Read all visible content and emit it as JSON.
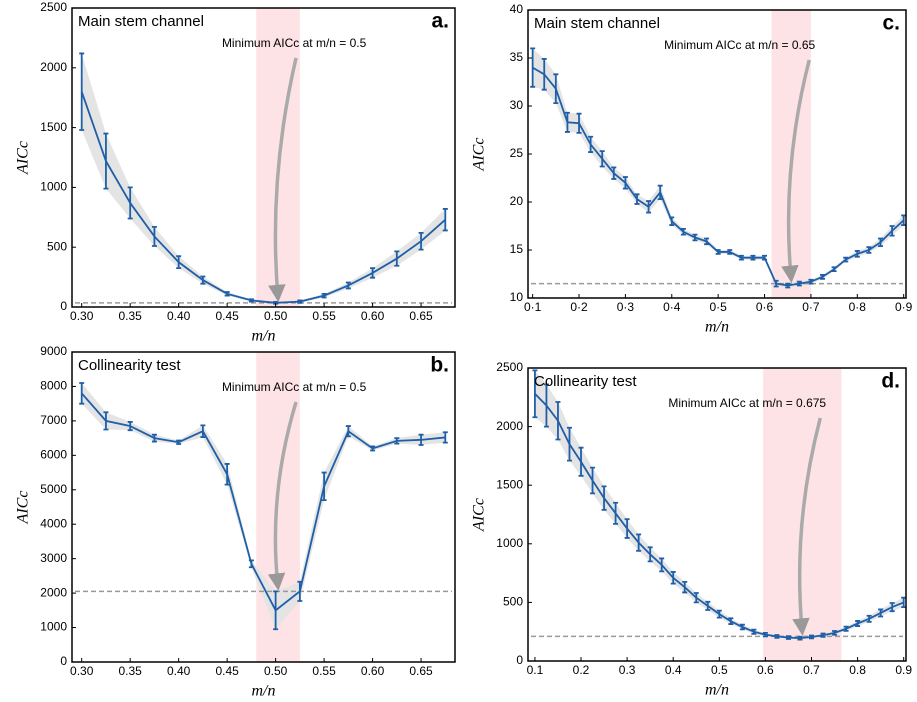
{
  "chart_data": [
    {
      "type": "line",
      "title": "Main stem channel",
      "label": "a.",
      "annotation": "Minimum AICc at m/n = 0.5",
      "xlabel": "m/n",
      "ylabel": "AICc",
      "color": "#1f5fa8",
      "x": [
        0.3,
        0.325,
        0.35,
        0.375,
        0.4,
        0.425,
        0.45,
        0.475,
        0.5,
        0.525,
        0.55,
        0.575,
        0.6,
        0.625,
        0.65,
        0.675
      ],
      "values": [
        1800,
        1220,
        870,
        590,
        375,
        225,
        110,
        55,
        35,
        45,
        95,
        180,
        285,
        405,
        550,
        730
      ],
      "errors": [
        320,
        230,
        130,
        80,
        50,
        30,
        15,
        10,
        8,
        10,
        15,
        25,
        40,
        60,
        70,
        90
      ],
      "hline": 35,
      "highlight": [
        0.48,
        0.525
      ],
      "xlim": [
        0.29,
        0.685
      ],
      "xticks": [
        {
          "value": 0.3,
          "label": "0.30"
        },
        0.35,
        {
          "value": 0.4,
          "label": "0.40"
        },
        0.45,
        {
          "value": 0.5,
          "label": "0.50"
        },
        0.55,
        {
          "value": 0.6,
          "label": "0.60"
        },
        0.65
      ],
      "ylim": [
        0,
        2500
      ],
      "yticks": [
        0,
        500,
        1000,
        1500,
        2000,
        2500
      ]
    },
    {
      "type": "line",
      "title": "Collinearity test",
      "label": "b.",
      "annotation": "Minimum AICc at m/n = 0.5",
      "xlabel": "m/n",
      "ylabel": "AICc",
      "color": "#1f5fa8",
      "x": [
        0.3,
        0.325,
        0.35,
        0.375,
        0.4,
        0.425,
        0.45,
        0.475,
        0.5,
        0.525,
        0.55,
        0.575,
        0.6,
        0.625,
        0.65,
        0.675
      ],
      "values": [
        7800,
        7000,
        6850,
        6500,
        6380,
        6700,
        5450,
        2850,
        1500,
        2050,
        5100,
        6700,
        6200,
        6420,
        6450,
        6520
      ],
      "errors": [
        300,
        250,
        120,
        100,
        50,
        170,
        300,
        100,
        550,
        280,
        400,
        150,
        60,
        80,
        150,
        150
      ],
      "hline": 2050,
      "highlight": [
        0.48,
        0.525
      ],
      "xlim": [
        0.29,
        0.685
      ],
      "xticks": [
        {
          "value": 0.3,
          "label": "0.30"
        },
        0.35,
        {
          "value": 0.4,
          "label": "0.40"
        },
        0.45,
        {
          "value": 0.5,
          "label": "0.50"
        },
        0.55,
        {
          "value": 0.6,
          "label": "0.60"
        },
        0.65
      ],
      "ylim": [
        0,
        9000
      ],
      "yticks": [
        0,
        1000,
        2000,
        3000,
        4000,
        5000,
        6000,
        7000,
        8000,
        9000
      ]
    },
    {
      "type": "line",
      "title": "Main stem channel",
      "label": "c.",
      "annotation": "Minimum AICc at m/n = 0.65",
      "xlabel": "m/n",
      "ylabel": "AICc",
      "color": "#1f5fa8",
      "x": [
        0.1,
        0.125,
        0.15,
        0.175,
        0.2,
        0.225,
        0.25,
        0.275,
        0.3,
        0.325,
        0.35,
        0.375,
        0.4,
        0.425,
        0.45,
        0.475,
        0.5,
        0.525,
        0.55,
        0.575,
        0.6,
        0.625,
        0.65,
        0.675,
        0.7,
        0.725,
        0.75,
        0.775,
        0.8,
        0.825,
        0.85,
        0.875,
        0.9
      ],
      "values": [
        34,
        33.3,
        31.8,
        28.3,
        28.2,
        26,
        24.5,
        23,
        22,
        20.3,
        19.5,
        21,
        18,
        16.9,
        16.3,
        15.9,
        14.8,
        14.8,
        14.2,
        14.2,
        14.2,
        11.5,
        11.3,
        11.5,
        11.7,
        12.2,
        13,
        14,
        14.6,
        15,
        15.8,
        17,
        18.1
      ],
      "errors": [
        2,
        1.6,
        1.5,
        1,
        1,
        0.8,
        0.8,
        0.6,
        0.6,
        0.5,
        0.6,
        0.7,
        0.4,
        0.3,
        0.3,
        0.3,
        0.2,
        0.2,
        0.2,
        0.2,
        0.2,
        0.3,
        0.2,
        0.2,
        0.2,
        0.2,
        0.2,
        0.2,
        0.3,
        0.3,
        0.4,
        0.5,
        0.5
      ],
      "hline": 11.5,
      "highlight": [
        0.615,
        0.7
      ],
      "xlim": [
        0.09,
        0.905
      ],
      "xticks": [
        {
          "value": 0.1,
          "label": "0·1"
        },
        {
          "value": 0.2,
          "label": "0·2"
        },
        {
          "value": 0.3,
          "label": "0·3"
        },
        {
          "value": 0.4,
          "label": "0·4"
        },
        {
          "value": 0.5,
          "label": "0·5"
        },
        {
          "value": 0.6,
          "label": "0·6"
        },
        {
          "value": 0.7,
          "label": "0·7"
        },
        {
          "value": 0.8,
          "label": "0·8"
        },
        {
          "value": 0.9,
          "label": "0·9"
        }
      ],
      "ylim": [
        10,
        40
      ],
      "yticks": [
        10,
        15,
        20,
        25,
        30,
        35,
        40
      ]
    },
    {
      "type": "line",
      "title": "Collinearity test",
      "label": "d.",
      "annotation": "Minimum AICc at m/n = 0.675",
      "xlabel": "m/n",
      "ylabel": "AICc",
      "color": "#1f5fa8",
      "x": [
        0.1,
        0.125,
        0.15,
        0.175,
        0.2,
        0.225,
        0.25,
        0.275,
        0.3,
        0.325,
        0.35,
        0.375,
        0.4,
        0.425,
        0.45,
        0.475,
        0.5,
        0.525,
        0.55,
        0.575,
        0.6,
        0.625,
        0.65,
        0.675,
        0.7,
        0.725,
        0.75,
        0.775,
        0.8,
        0.825,
        0.85,
        0.875,
        0.9
      ],
      "values": [
        2280,
        2180,
        2050,
        1850,
        1700,
        1540,
        1390,
        1260,
        1130,
        1010,
        910,
        820,
        710,
        630,
        540,
        470,
        400,
        340,
        290,
        250,
        225,
        210,
        200,
        195,
        205,
        220,
        240,
        275,
        320,
        360,
        410,
        460,
        500
      ],
      "errors": [
        200,
        180,
        160,
        140,
        120,
        110,
        100,
        90,
        80,
        70,
        60,
        55,
        50,
        45,
        40,
        35,
        30,
        25,
        20,
        18,
        15,
        12,
        12,
        12,
        12,
        14,
        16,
        18,
        22,
        26,
        30,
        35,
        40
      ],
      "hline": 210,
      "highlight": [
        0.595,
        0.765
      ],
      "xlim": [
        0.085,
        0.905
      ],
      "xticks": [
        0.1,
        0.2,
        0.3,
        0.4,
        0.5,
        0.6,
        0.7,
        0.8,
        0.9
      ],
      "ylim": [
        0,
        2500
      ],
      "yticks": [
        0,
        500,
        1000,
        1500,
        2000,
        2500
      ]
    }
  ]
}
